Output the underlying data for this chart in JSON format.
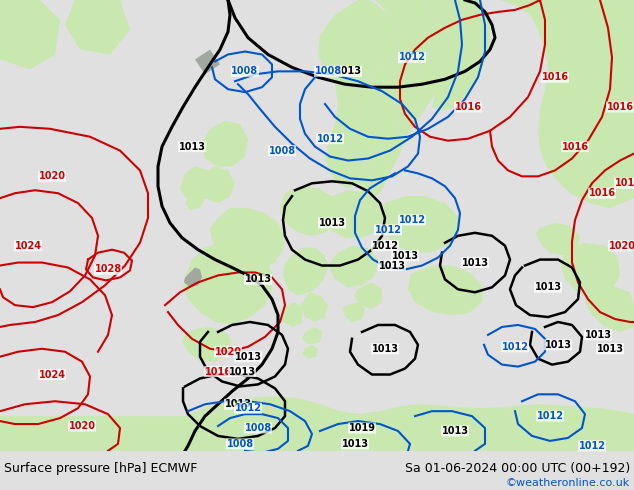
{
  "title_left": "Surface pressure [hPa] ECMWF",
  "title_right": "Sa 01-06-2024 00:00 UTC (00+192)",
  "credit": "©weatheronline.co.uk",
  "ocean_color": "#d8d8d8",
  "land_color": "#c8e8b0",
  "land_dark_color": "#a0a8a0",
  "footer_bg": "#e0e0e0",
  "font_size_title": 9,
  "font_size_credit": 8
}
